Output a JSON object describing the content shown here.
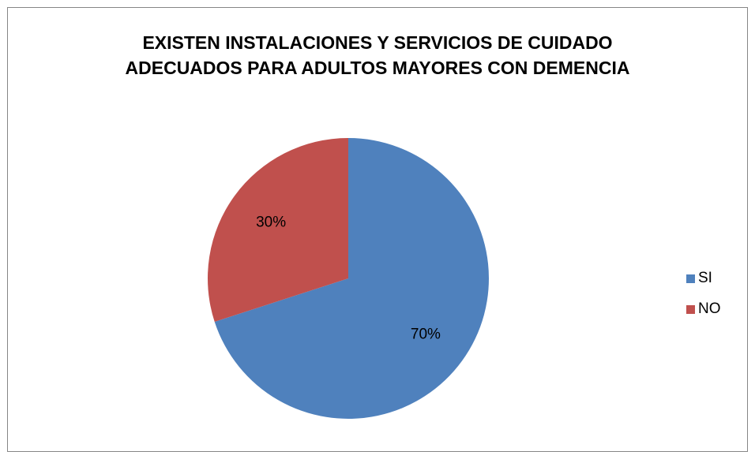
{
  "chart_data": {
    "type": "pie",
    "title": "EXISTEN INSTALACIONES Y SERVICIOS DE CUIDADO ADECUADOS PARA ADULTOS MAYORES CON DEMENCIA",
    "title_lines": [
      "EXISTEN INSTALACIONES Y SERVICIOS DE CUIDADO",
      "ADECUADOS PARA ADULTOS MAYORES CON DEMENCIA"
    ],
    "categories": [
      "SI",
      "NO"
    ],
    "values": [
      70,
      30
    ],
    "data_labels": [
      "70%",
      "30%"
    ],
    "colors": [
      "#4F81BD",
      "#C0504D"
    ],
    "legend_position": "right"
  }
}
